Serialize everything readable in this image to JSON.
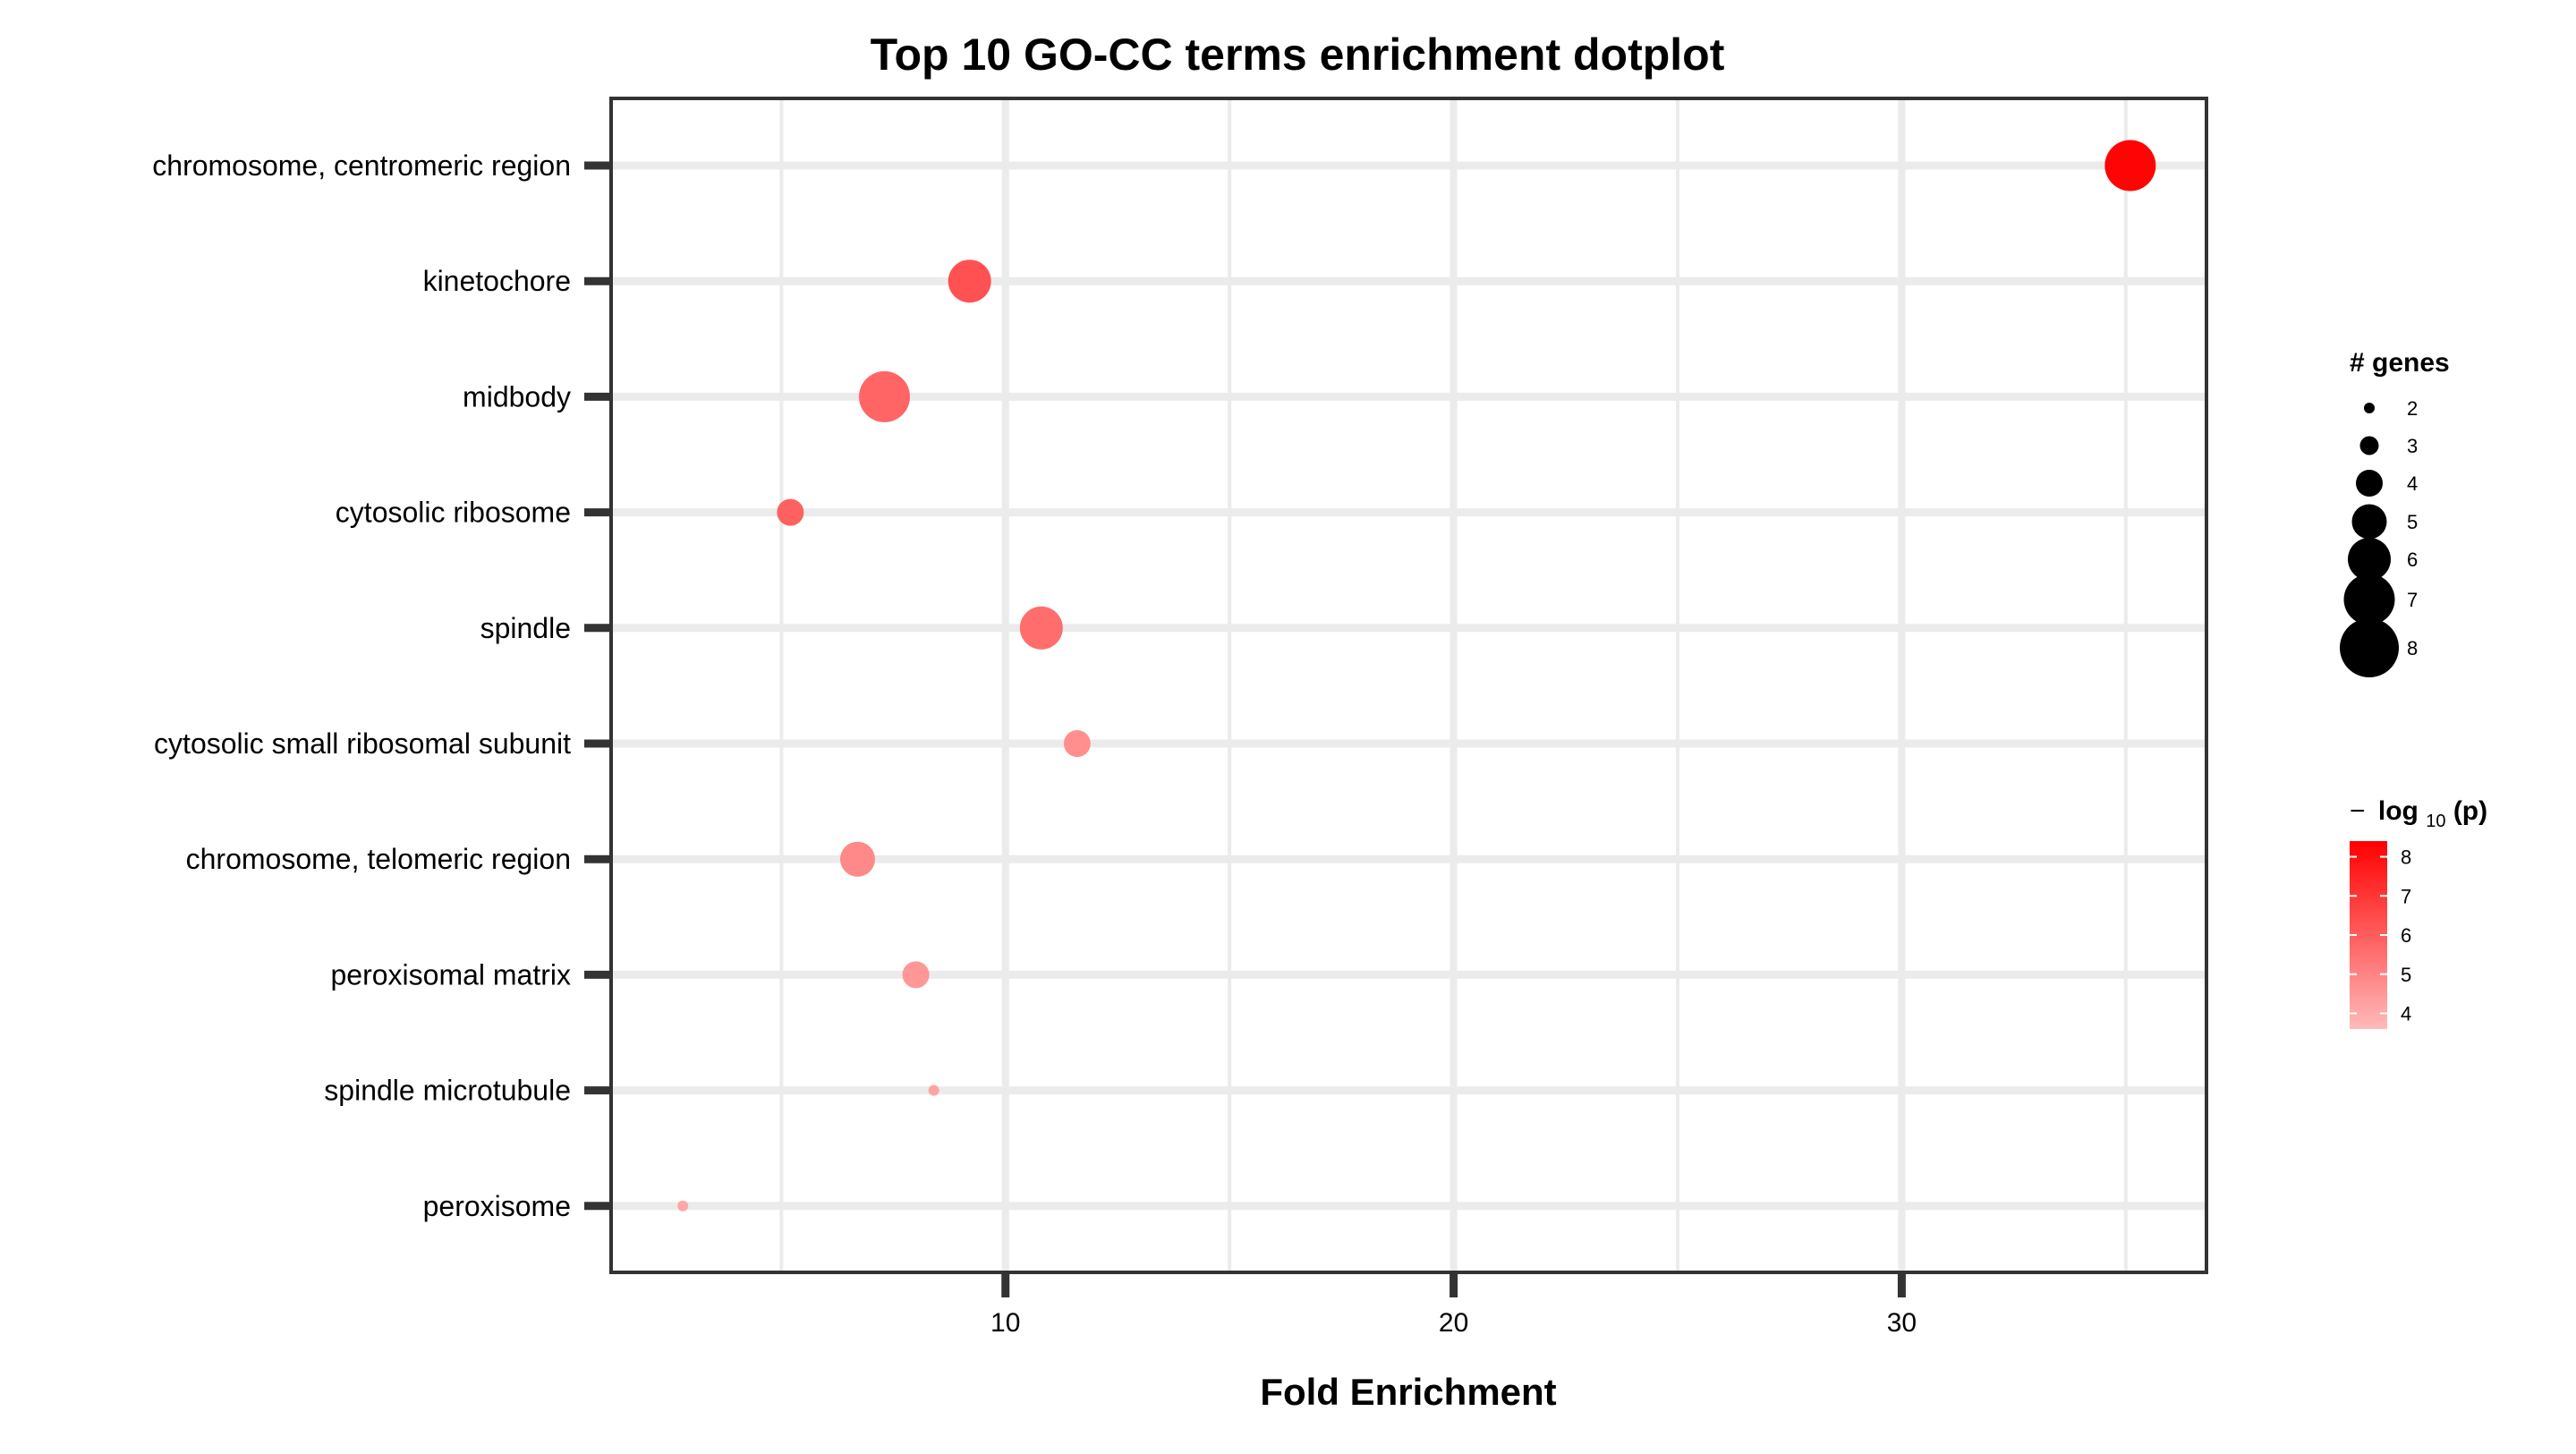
{
  "chart_data": {
    "type": "scatter",
    "title": "Top 10 GO-CC terms enrichment dotplot",
    "xlabel": "Fold Enrichment",
    "ylabel": "",
    "xlim": [
      1.2,
      36.8
    ],
    "x_ticks": [
      10,
      20,
      30
    ],
    "grid": true,
    "categories": [
      "chromosome, centromeric region",
      "kinetochore",
      "midbody",
      "cytosolic ribosome",
      "spindle",
      "cytosolic small ribosomal subunit",
      "chromosome, telomeric region",
      "peroxisomal matrix",
      "spindle microtubule",
      "peroxisome"
    ],
    "points": [
      {
        "term": "chromosome, centromeric region",
        "fold_enrichment": 35.1,
        "genes": 7,
        "neg_log10_p": 8.3
      },
      {
        "term": "kinetochore",
        "fold_enrichment": 9.2,
        "genes": 6,
        "neg_log10_p": 6.3
      },
      {
        "term": "midbody",
        "fold_enrichment": 7.3,
        "genes": 7,
        "neg_log10_p": 5.8
      },
      {
        "term": "cytosolic ribosome",
        "fold_enrichment": 5.2,
        "genes": 4,
        "neg_log10_p": 5.9
      },
      {
        "term": "spindle",
        "fold_enrichment": 10.8,
        "genes": 6,
        "neg_log10_p": 5.6
      },
      {
        "term": "cytosolic small ribosomal subunit",
        "fold_enrichment": 11.6,
        "genes": 4,
        "neg_log10_p": 4.7
      },
      {
        "term": "chromosome, telomeric region",
        "fold_enrichment": 6.7,
        "genes": 5,
        "neg_log10_p": 4.9
      },
      {
        "term": "peroxisomal matrix",
        "fold_enrichment": 8.0,
        "genes": 4,
        "neg_log10_p": 4.5
      },
      {
        "term": "spindle microtubule",
        "fold_enrichment": 8.4,
        "genes": 2,
        "neg_log10_p": 4.2
      },
      {
        "term": "peroxisome",
        "fold_enrichment": 2.8,
        "genes": 2,
        "neg_log10_p": 4.1
      }
    ],
    "size_legend": {
      "title": "# genes",
      "values": [
        2,
        3,
        4,
        5,
        6,
        7,
        8
      ]
    },
    "color_legend": {
      "title_prefix": "−",
      "title_log": "log",
      "title_sub": "10",
      "title_arg": "(p)",
      "range": [
        3.6,
        8.4
      ],
      "ticks": [
        4,
        5,
        6,
        7,
        8
      ],
      "color_low": "#ffbaba",
      "color_high": "#ff0000"
    },
    "colors": {
      "grid": "#ebebeb",
      "panel_border": "#333333",
      "text": "#000000"
    }
  }
}
